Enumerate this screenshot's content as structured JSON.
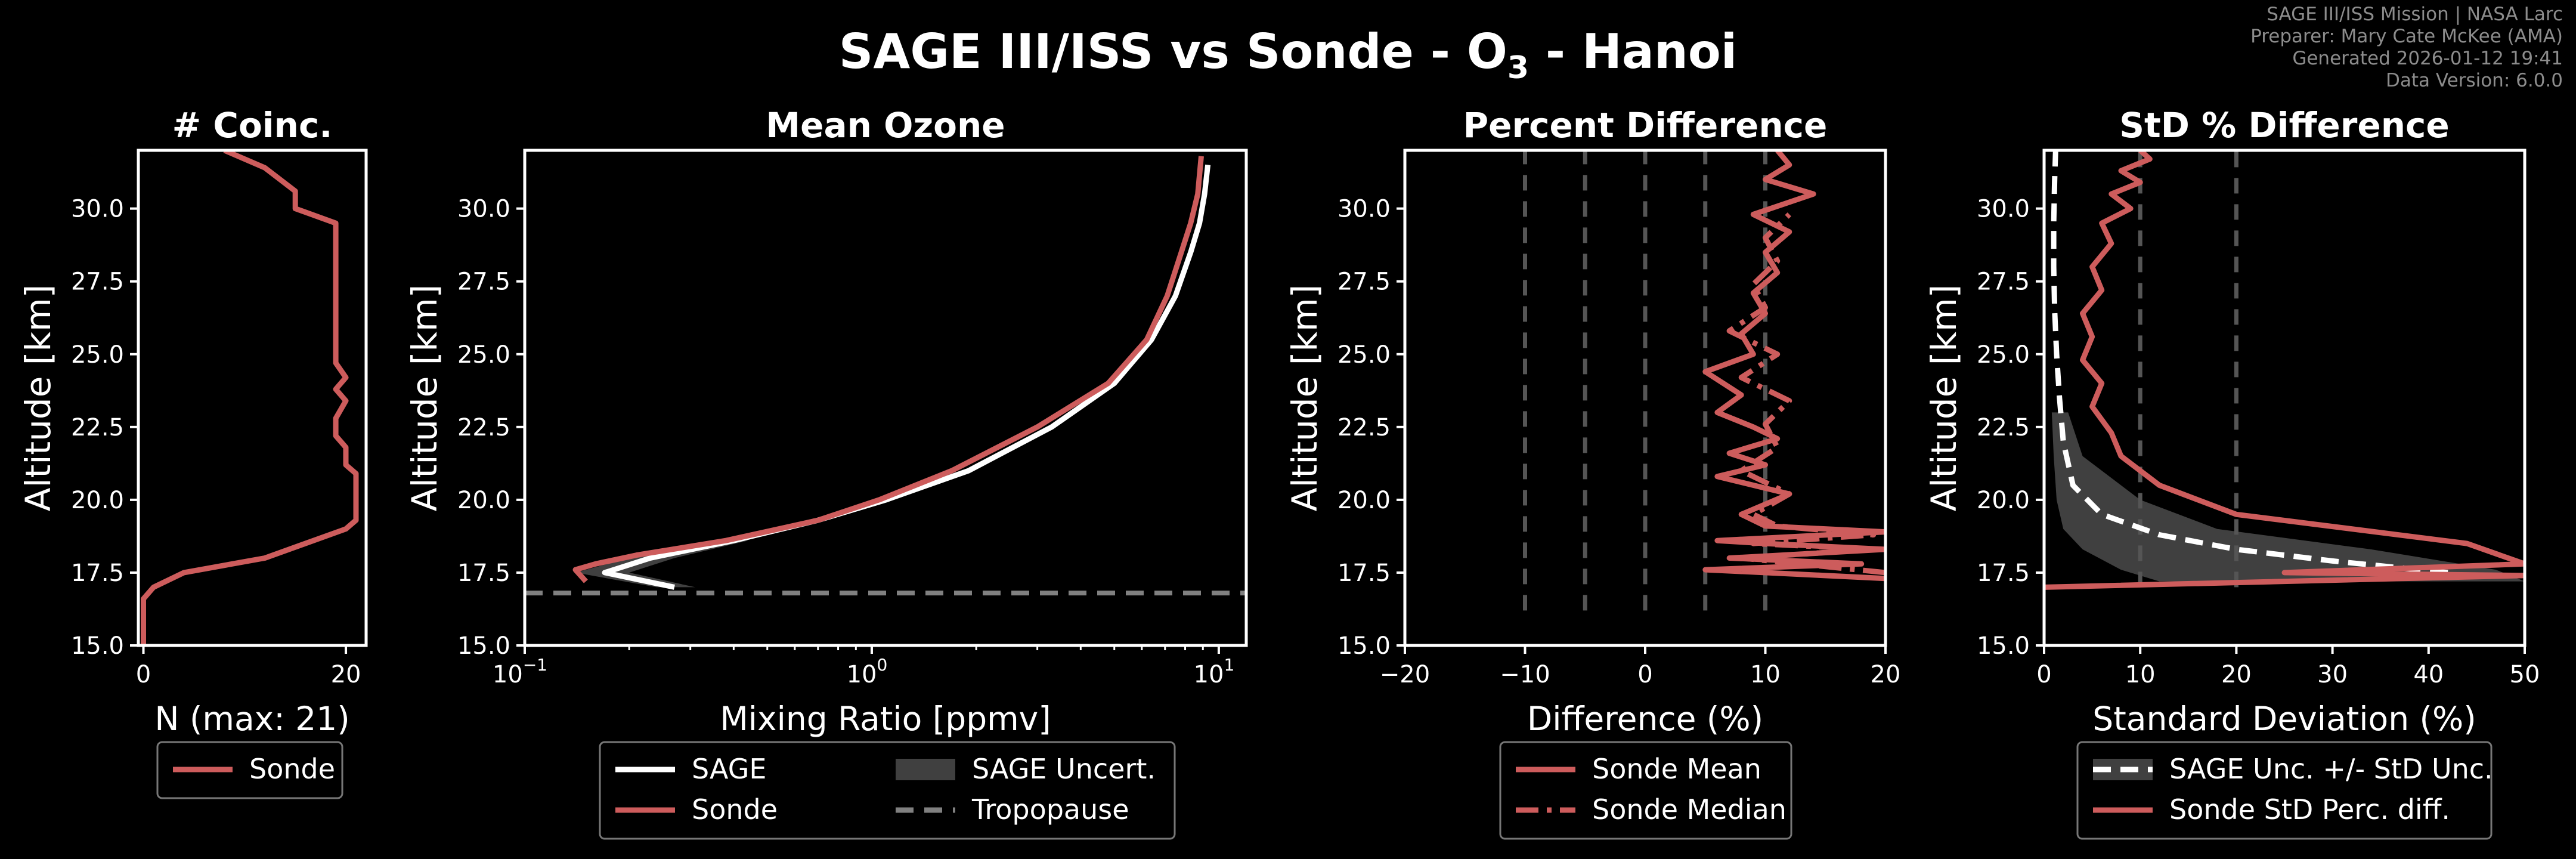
{
  "header": {
    "title_main": "SAGE III/ISS vs Sonde - O",
    "title_sub": "3",
    "title_tail": " - Hanoi",
    "meta_lines": [
      "SAGE III/ISS Mission | NASA Larc",
      "Preparer: Mary Cate McKee (AMA)",
      "Generated 2026-01-12 19:41",
      "Data Version: 6.0.0"
    ]
  },
  "colors": {
    "background": "#000000",
    "sonde": "#cd5c5c",
    "sage": "#ffffff",
    "tropopause": "#808080",
    "uncert": "#555555"
  },
  "chart_data": [
    {
      "id": "coinc",
      "type": "line",
      "title": "# Coinc.",
      "xlabel": "N (max: 21)",
      "ylabel": "Altitude [km]",
      "xlim": [
        -0.5,
        22
      ],
      "ylim": [
        15,
        32
      ],
      "xticks": [
        0,
        20
      ],
      "yticks": [
        15.0,
        17.5,
        20.0,
        22.5,
        25.0,
        27.5,
        30.0
      ],
      "legend": {
        "placement": "below",
        "columns": 1,
        "entries": [
          {
            "label": "Sonde",
            "style": "sonde-line"
          }
        ]
      },
      "series": [
        {
          "name": "Sonde",
          "x": [
            0,
            0,
            1,
            4,
            12,
            20,
            21,
            21,
            20,
            20,
            19,
            19,
            20,
            19,
            20,
            19,
            19,
            19,
            19,
            15,
            15,
            12,
            8
          ],
          "y": [
            15.0,
            16.6,
            17.0,
            17.5,
            18.0,
            19.0,
            19.3,
            20.9,
            21.2,
            21.8,
            22.2,
            22.8,
            23.4,
            23.8,
            24.2,
            24.7,
            25.3,
            27.5,
            29.5,
            30.0,
            30.6,
            31.4,
            32.0
          ]
        }
      ]
    },
    {
      "id": "mean",
      "type": "line",
      "title": "Mean Ozone",
      "xlabel": "Mixing Ratio [ppmv]",
      "ylabel": "Altitude [km]",
      "xscale": "log",
      "xlim": [
        0.1,
        12
      ],
      "ylim": [
        15,
        32
      ],
      "xticks": [
        0.1,
        1,
        10
      ],
      "xticklabels": [
        "10",
        "10",
        "10"
      ],
      "xtickexps": [
        "−1",
        "0",
        "1"
      ],
      "yticks": [
        15.0,
        17.5,
        20.0,
        22.5,
        25.0,
        27.5,
        30.0
      ],
      "tropopause": 16.8,
      "legend": {
        "placement": "below",
        "columns": 2,
        "entries": [
          {
            "label": "SAGE",
            "style": "sage-line"
          },
          {
            "label": "Sonde",
            "style": "sonde-line"
          },
          {
            "label": "SAGE Uncert.",
            "style": "uncert-patch"
          },
          {
            "label": "Tropopause",
            "style": "tropo-line"
          }
        ]
      },
      "series": [
        {
          "name": "SAGE",
          "x": [
            0.27,
            0.17,
            0.23,
            0.4,
            0.7,
            1.1,
            1.9,
            3.3,
            5.0,
            6.4,
            7.5,
            8.3,
            8.8,
            9.1,
            9.3
          ],
          "y": [
            17.0,
            17.5,
            18.0,
            18.6,
            19.3,
            20.0,
            21.0,
            22.5,
            24.0,
            25.5,
            27.0,
            28.5,
            29.5,
            30.5,
            31.5
          ]
        },
        {
          "name": "Sonde",
          "x": [
            0.15,
            0.14,
            0.16,
            0.21,
            0.38,
            0.7,
            1.05,
            1.7,
            3.0,
            4.8,
            6.2,
            7.1,
            7.8,
            8.3,
            8.7,
            8.9
          ],
          "y": [
            17.2,
            17.6,
            17.8,
            18.1,
            18.6,
            19.3,
            20.0,
            21.0,
            22.5,
            24.0,
            25.5,
            27.0,
            28.5,
            29.5,
            30.5,
            31.8
          ]
        },
        {
          "name": "SAGE Uncert.",
          "x_low": [
            0.24,
            0.14,
            0.2,
            0.37
          ],
          "x_high": [
            0.31,
            0.2,
            0.27,
            0.44
          ],
          "y": [
            17.0,
            17.5,
            18.0,
            18.6
          ]
        }
      ]
    },
    {
      "id": "pdiff",
      "type": "line",
      "title": "Percent Difference",
      "xlabel": "Difference (%)",
      "ylabel": "Altitude [km]",
      "xlim": [
        -20,
        20
      ],
      "ylim": [
        15,
        32
      ],
      "xticks": [
        -20,
        -10,
        0,
        10,
        20
      ],
      "yticks": [
        15.0,
        17.5,
        20.0,
        22.5,
        25.0,
        27.5,
        30.0
      ],
      "vlines": [
        -10,
        -5,
        0,
        5,
        10
      ],
      "vline_ylim": [
        16.2,
        32
      ],
      "legend": {
        "placement": "below",
        "columns": 1,
        "entries": [
          {
            "label": "Sonde Mean",
            "style": "sonde-line"
          },
          {
            "label": "Sonde Median",
            "style": "sonde-dashdot"
          }
        ]
      },
      "series": [
        {
          "name": "Sonde Mean",
          "x": [
            20,
            5,
            18,
            7,
            20,
            10,
            6,
            20,
            10,
            8,
            12,
            6,
            10,
            7,
            11,
            9,
            6,
            8,
            5,
            9,
            8,
            10,
            9,
            11,
            10,
            12,
            9,
            14,
            10,
            12,
            11
          ],
          "y": [
            17.3,
            17.6,
            17.8,
            18.0,
            18.3,
            18.5,
            18.6,
            18.9,
            19.1,
            19.5,
            20.2,
            20.8,
            21.2,
            21.6,
            22.1,
            22.5,
            23.0,
            23.6,
            24.4,
            25.0,
            25.7,
            26.4,
            27.1,
            27.8,
            28.5,
            29.2,
            29.8,
            30.5,
            31.0,
            31.5,
            32.0
          ]
        },
        {
          "name": "Sonde Median",
          "x": [
            20,
            8,
            19,
            9,
            19,
            11,
            9,
            12,
            8,
            11,
            10,
            12,
            8,
            11,
            7,
            10,
            9,
            11,
            10,
            12
          ],
          "y": [
            17.5,
            18.0,
            18.3,
            18.5,
            18.8,
            19.1,
            19.5,
            20.2,
            21.0,
            21.8,
            22.6,
            23.4,
            24.2,
            25.0,
            25.8,
            26.6,
            27.4,
            28.2,
            29.0,
            29.8
          ]
        }
      ]
    },
    {
      "id": "std",
      "type": "line",
      "title": "StD % Difference",
      "xlabel": "Standard Deviation (%)",
      "ylabel": "Altitude [km]",
      "xlim": [
        0,
        50
      ],
      "ylim": [
        15,
        32
      ],
      "xticks": [
        0,
        10,
        20,
        30,
        40,
        50
      ],
      "yticks": [
        15.0,
        17.5,
        20.0,
        22.5,
        25.0,
        27.5,
        30.0
      ],
      "vlines": [
        10,
        20
      ],
      "vline_ylim": [
        17.0,
        32
      ],
      "legend": {
        "placement": "below",
        "columns": 1,
        "entries": [
          {
            "label": "SAGE Unc. +/- StD Unc.",
            "style": "sage-dash-patch"
          },
          {
            "label": "Sonde StD Perc. diff.",
            "style": "sonde-line"
          }
        ]
      },
      "series": [
        {
          "name": "SAGE Unc. +/- StD Unc.",
          "x": [
            42,
            30,
            20,
            12,
            6,
            3,
            2,
            1.6,
            1.3,
            1.1,
            1.0,
            1.0,
            1.1,
            1.2
          ],
          "y": [
            17.5,
            17.9,
            18.3,
            18.8,
            19.5,
            20.5,
            22.0,
            23.5,
            25.0,
            26.5,
            28.0,
            29.5,
            31.0,
            32.0
          ]
        },
        {
          "name": "SAGE band",
          "x_low": [
            12,
            8,
            4,
            2,
            1.3,
            1.0,
            0.8
          ],
          "x_high": [
            50,
            47,
            34,
            18,
            10,
            4,
            2.5
          ],
          "y": [
            17.2,
            17.6,
            18.3,
            19.0,
            20.0,
            21.5,
            23.0
          ]
        },
        {
          "name": "Sonde StD Perc. diff.",
          "x": [
            0,
            50,
            25,
            50,
            44,
            20,
            12,
            8,
            7,
            5,
            6,
            4,
            5,
            4,
            6,
            5,
            7,
            6,
            9,
            7,
            10,
            8,
            11,
            10
          ],
          "y": [
            17.0,
            17.4,
            17.5,
            17.8,
            18.5,
            19.5,
            20.5,
            21.5,
            22.3,
            23.2,
            24.0,
            24.8,
            25.6,
            26.4,
            27.2,
            28.0,
            28.8,
            29.5,
            30.0,
            30.5,
            30.9,
            31.3,
            31.7,
            32.0
          ]
        }
      ]
    }
  ]
}
